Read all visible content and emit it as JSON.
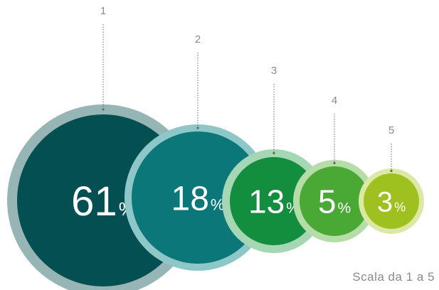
{
  "chart_data": {
    "type": "bubble",
    "categories": [
      "1",
      "2",
      "3",
      "4",
      "5"
    ],
    "values": [
      61,
      18,
      13,
      5,
      3
    ],
    "unit": "%",
    "note": "Scala da 1 a 5"
  },
  "colors": {
    "fills": [
      "#034f51",
      "#0b7779",
      "#128e3e",
      "#4aa935",
      "#9fc11f"
    ],
    "rings": [
      "#97b5b5",
      "#8ec7c8",
      "#a6d7b4",
      "#b6dca8",
      "#dbe9a4"
    ],
    "value_text": "#ffffff",
    "category_text": "#8a8a8a",
    "leader_line": "#666666"
  }
}
